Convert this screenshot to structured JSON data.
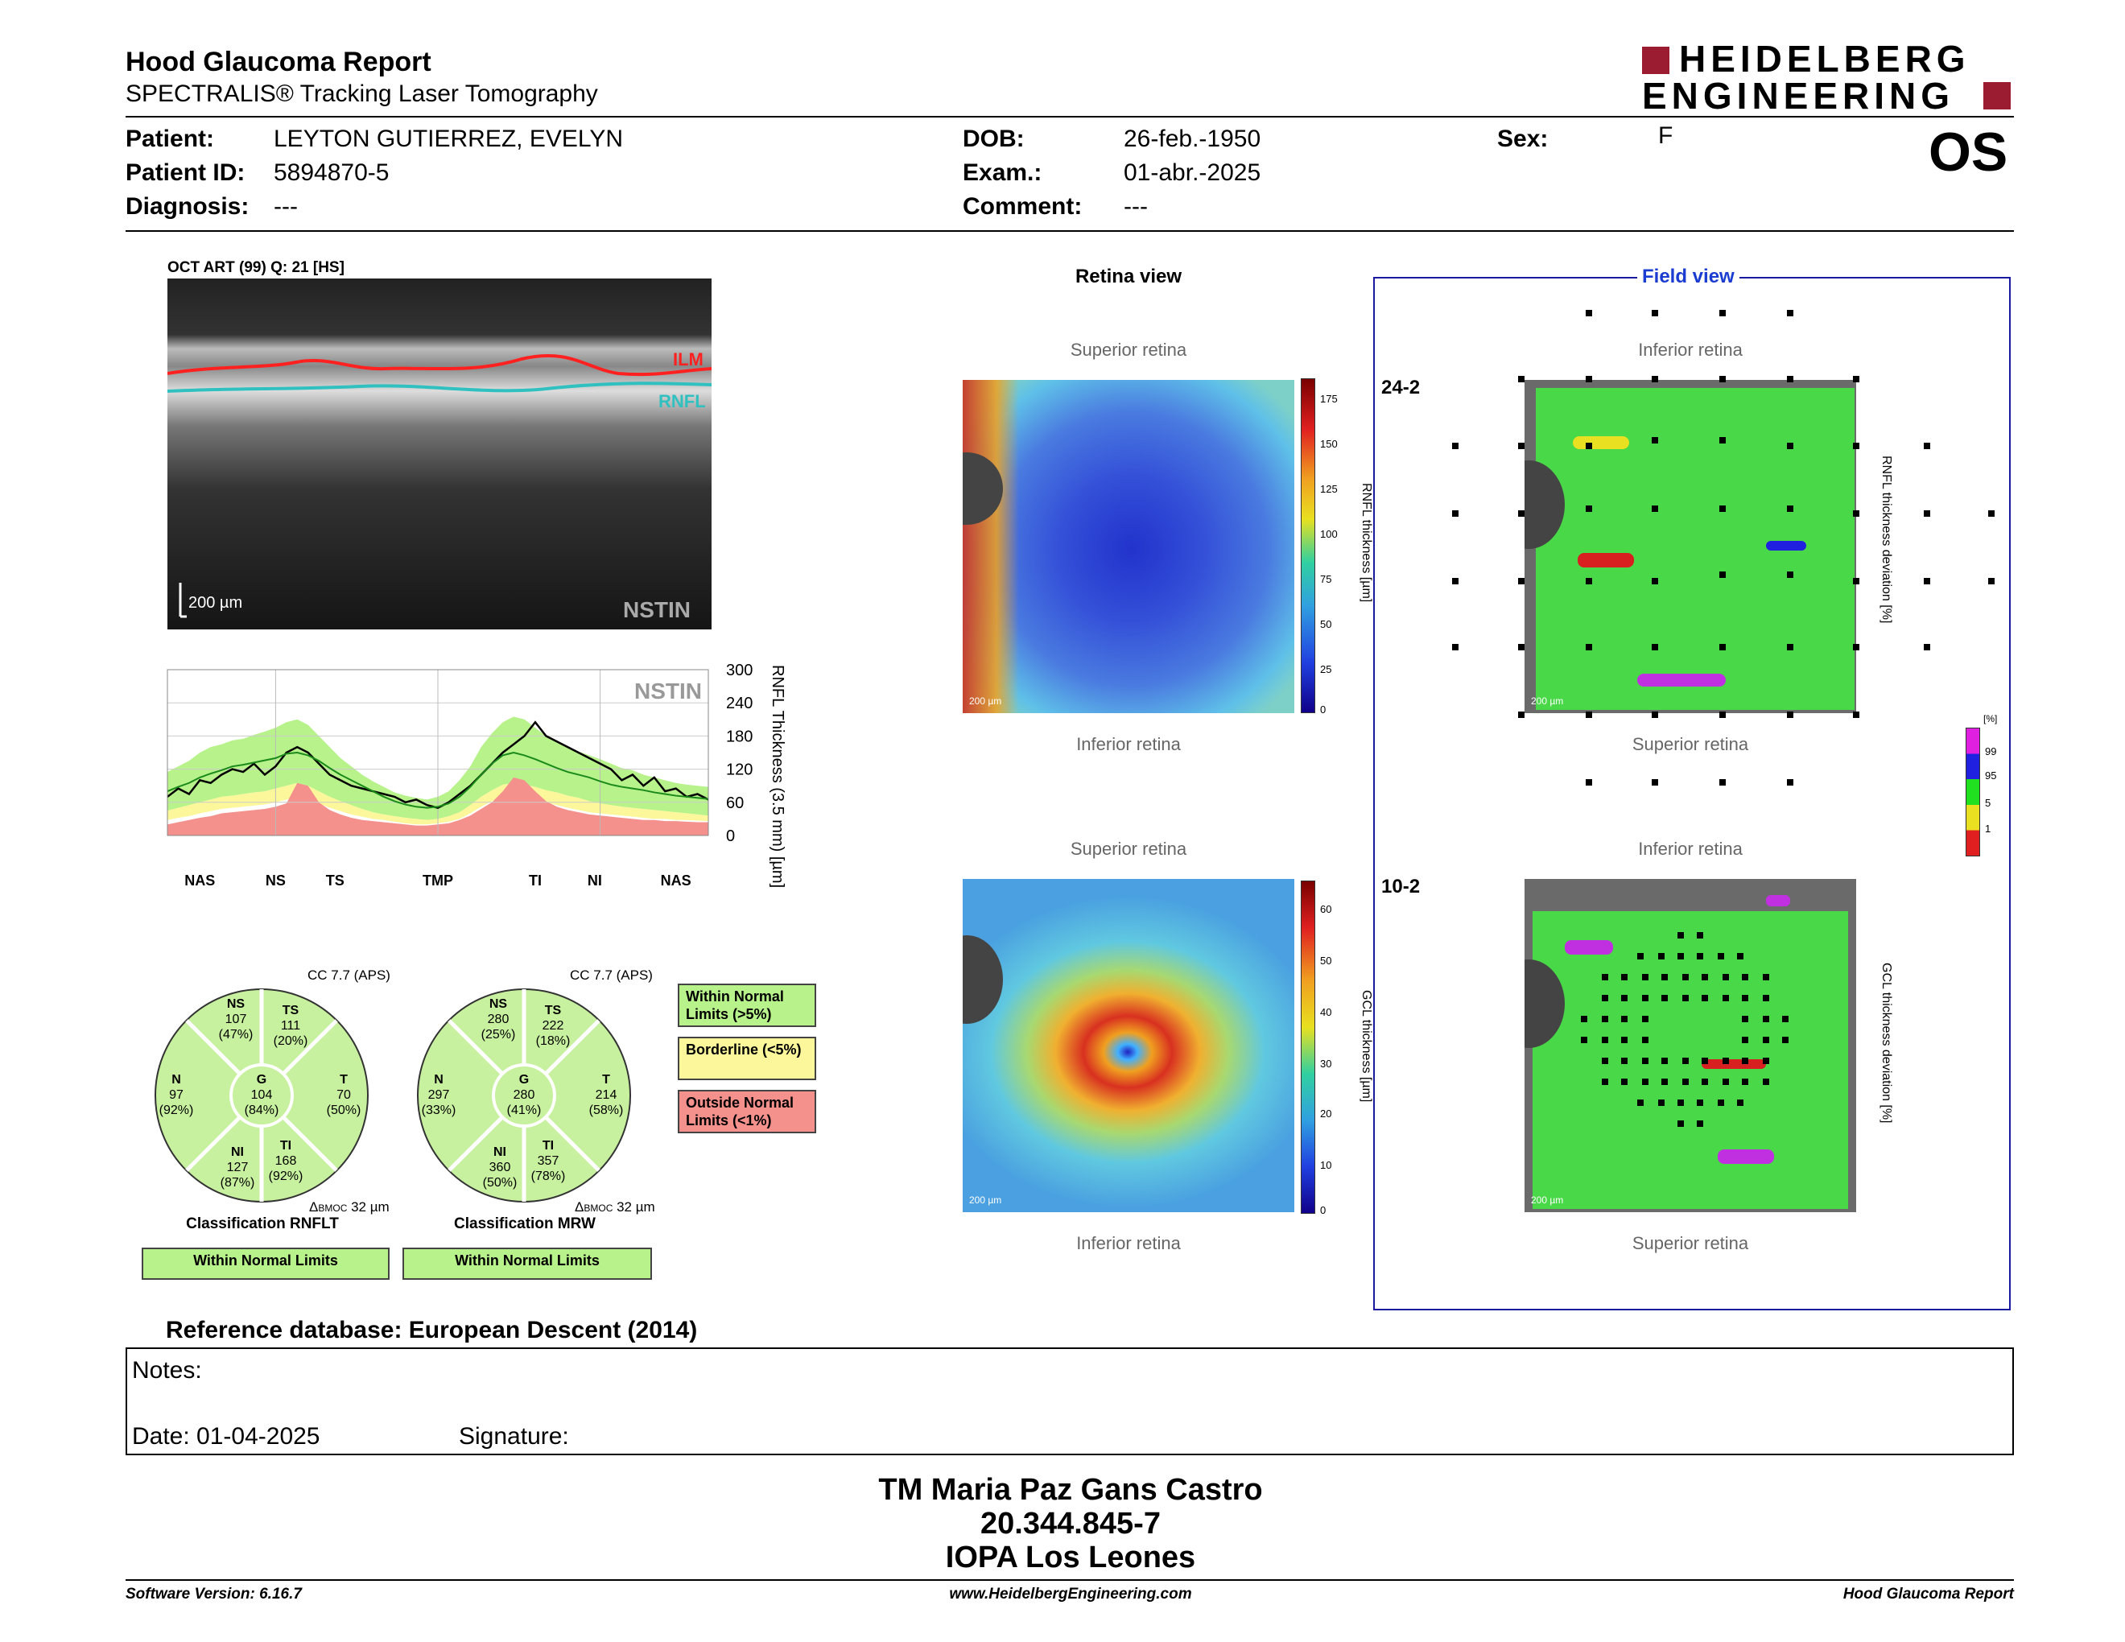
{
  "header": {
    "title": "Hood Glaucoma Report",
    "subtitle": "SPECTRALIS® Tracking Laser Tomography",
    "logo_line1": "HEIDELBERG",
    "logo_line2": "ENGINEERING",
    "eye": "OS"
  },
  "patient": {
    "patient_label": "Patient:",
    "patient_value": "LEYTON GUTIERREZ, EVELYN",
    "id_label": "Patient ID:",
    "id_value": "5894870-5",
    "diag_label": "Diagnosis:",
    "diag_value": "---",
    "dob_label": "DOB:",
    "dob_value": "26-feb.-1950",
    "exam_label": "Exam.:",
    "exam_value": "01-abr.-2025",
    "comment_label": "Comment:",
    "comment_value": "---",
    "sex_label": "Sex:",
    "sex_value": "F"
  },
  "oct": {
    "header": "OCT ART (99) Q: 21 [HS]",
    "ilm": "ILM",
    "rnfl": "RNFL",
    "scale": "200 µm",
    "nstin": "NSTIN"
  },
  "chart_data": {
    "type": "line",
    "title": "",
    "ylabel": "RNFL Thickness (3.5 mm) [µm]",
    "watermark": "NSTIN",
    "yticks": [
      0,
      60,
      120,
      180,
      240,
      300
    ],
    "ylim": [
      0,
      300
    ],
    "xlabels": [
      "NAS",
      "NS",
      "TS",
      "TMP",
      "TI",
      "NI",
      "NAS"
    ],
    "xlabel_pos": [
      0.06,
      0.2,
      0.31,
      0.5,
      0.68,
      0.79,
      0.94
    ],
    "x": [
      0,
      0.02,
      0.04,
      0.06,
      0.08,
      0.1,
      0.12,
      0.14,
      0.16,
      0.18,
      0.2,
      0.22,
      0.24,
      0.26,
      0.28,
      0.3,
      0.32,
      0.34,
      0.36,
      0.38,
      0.4,
      0.42,
      0.44,
      0.46,
      0.48,
      0.5,
      0.52,
      0.54,
      0.56,
      0.58,
      0.6,
      0.62,
      0.64,
      0.66,
      0.68,
      0.7,
      0.72,
      0.74,
      0.76,
      0.78,
      0.8,
      0.82,
      0.84,
      0.86,
      0.88,
      0.9,
      0.92,
      0.94,
      0.96,
      0.98,
      1
    ],
    "series": [
      {
        "name": "measured",
        "values": [
          70,
          85,
          75,
          100,
          95,
          110,
          120,
          115,
          130,
          110,
          125,
          150,
          160,
          150,
          130,
          110,
          100,
          90,
          85,
          80,
          75,
          70,
          60,
          65,
          55,
          50,
          60,
          75,
          90,
          110,
          130,
          150,
          165,
          180,
          205,
          180,
          170,
          160,
          150,
          140,
          130,
          120,
          100,
          110,
          90,
          105,
          80,
          85,
          70,
          75,
          65
        ]
      },
      {
        "name": "mean",
        "values": [
          80,
          88,
          95,
          105,
          112,
          118,
          125,
          128,
          132,
          136,
          140,
          148,
          150,
          145,
          135,
          122,
          110,
          100,
          90,
          80,
          70,
          62,
          56,
          52,
          50,
          52,
          58,
          70,
          88,
          110,
          130,
          145,
          150,
          145,
          138,
          130,
          122,
          115,
          110,
          105,
          98,
          92,
          88,
          85,
          82,
          78,
          75,
          72,
          70,
          68,
          66
        ]
      }
    ],
    "normal_upper": [
      115,
      125,
      135,
      150,
      160,
      165,
      172,
      175,
      182,
      188,
      195,
      205,
      210,
      200,
      180,
      160,
      140,
      125,
      110,
      98,
      88,
      78,
      72,
      68,
      65,
      70,
      80,
      100,
      125,
      160,
      185,
      205,
      215,
      210,
      195,
      180,
      170,
      160,
      152,
      145,
      138,
      130,
      122,
      118,
      110,
      105,
      100,
      95,
      92,
      90,
      88
    ],
    "normal_lower": [
      45,
      50,
      55,
      60,
      65,
      70,
      72,
      75,
      78,
      80,
      85,
      90,
      95,
      90,
      80,
      70,
      62,
      55,
      48,
      42,
      38,
      35,
      32,
      30,
      28,
      30,
      35,
      42,
      55,
      70,
      82,
      92,
      95,
      92,
      88,
      82,
      78,
      72,
      68,
      62,
      58,
      55,
      52,
      50,
      48,
      46,
      44,
      42,
      40,
      38,
      36
    ],
    "border_lower": [
      28,
      32,
      35,
      40,
      44,
      48,
      50,
      52,
      54,
      56,
      60,
      65,
      70,
      65,
      58,
      50,
      44,
      38,
      34,
      30,
      28,
      25,
      22,
      20,
      20,
      22,
      25,
      30,
      40,
      52,
      62,
      72,
      75,
      72,
      66,
      60,
      55,
      50,
      46,
      42,
      40,
      38,
      36,
      34,
      32,
      30,
      30,
      28,
      28,
      27,
      26
    ],
    "outside_lower": [
      20,
      24,
      28,
      32,
      35,
      40,
      42,
      44,
      46,
      48,
      52,
      58,
      95,
      90,
      60,
      46,
      38,
      32,
      28,
      26,
      24,
      22,
      20,
      18,
      18,
      20,
      22,
      28,
      36,
      48,
      60,
      80,
      105,
      100,
      80,
      62,
      52,
      46,
      42,
      38,
      36,
      34,
      32,
      30,
      28,
      28,
      26,
      26,
      25,
      24,
      24
    ]
  },
  "rnflt": {
    "cc": "CC 7.7 (APS)",
    "segments": {
      "NS": {
        "label": "NS",
        "value": "107",
        "pct": "(47%)"
      },
      "TS": {
        "label": "TS",
        "value": "111",
        "pct": "(20%)"
      },
      "N": {
        "label": "N",
        "value": "97",
        "pct": "(92%)"
      },
      "G": {
        "label": "G",
        "value": "104",
        "pct": "(84%)"
      },
      "T": {
        "label": "T",
        "value": "70",
        "pct": "(50%)"
      },
      "NI": {
        "label": "NI",
        "value": "127",
        "pct": "(87%)"
      },
      "TI": {
        "label": "TI",
        "value": "168",
        "pct": "(92%)"
      }
    },
    "bmoc_prefix": "Δ",
    "bmoc_label": "BMOC",
    "bmoc": "32 µm",
    "classification": "Classification RNFLT",
    "result": "Within Normal Limits"
  },
  "mrw": {
    "cc": "CC 7.7 (APS)",
    "segments": {
      "NS": {
        "label": "NS",
        "value": "280",
        "pct": "(25%)"
      },
      "TS": {
        "label": "TS",
        "value": "222",
        "pct": "(18%)"
      },
      "N": {
        "label": "N",
        "value": "297",
        "pct": "(33%)"
      },
      "G": {
        "label": "G",
        "value": "280",
        "pct": "(41%)"
      },
      "T": {
        "label": "T",
        "value": "214",
        "pct": "(58%)"
      },
      "NI": {
        "label": "NI",
        "value": "360",
        "pct": "(50%)"
      },
      "TI": {
        "label": "TI",
        "value": "357",
        "pct": "(78%)"
      }
    },
    "bmoc_prefix": "Δ",
    "bmoc_label": "BMOC",
    "bmoc": "32 µm",
    "classification": "Classification MRW",
    "result": "Within Normal Limits"
  },
  "legend": {
    "within": "Within Normal Limits (>5%)",
    "border": "Borderline (<5%)",
    "outside": "Outside Normal Limits (<1%)",
    "within_color": "#b7f28a",
    "border_color": "#fbf79a",
    "outside_color": "#f4918c"
  },
  "retina": {
    "title": "Retina view",
    "superior": "Superior retina",
    "inferior": "Inferior retina",
    "scale": "200 µm",
    "rnfl_axis": "RNFL thickness [µm]",
    "rnfl_ticks": [
      "175",
      "150",
      "125",
      "100",
      "75",
      "50",
      "25",
      "0"
    ],
    "gcl_axis": "GCL thickness [µm]",
    "gcl_ticks": [
      "60",
      "50",
      "40",
      "30",
      "20",
      "10",
      "0"
    ]
  },
  "field": {
    "title": "Field view",
    "top": "Inferior retina",
    "bottom": "Superior retina",
    "label_24": "24-2",
    "label_10": "10-2",
    "rnfl_dev": "RNFL thickness deviation [%]",
    "gcl_dev": "GCL thickness deviation [%]",
    "pct_unit": "[%]",
    "pct_ticks": [
      "99",
      "95",
      "5",
      "1"
    ],
    "scale": "200 µm"
  },
  "reference": "Reference database: European Descent (2014)",
  "notes": {
    "notes_label": "Notes:",
    "date_label": "Date: 01-04-2025",
    "signature_label": "Signature:"
  },
  "signature_block": {
    "name": "TM Maria Paz Gans Castro",
    "id": "20.344.845-7",
    "institution": "IOPA Los Leones"
  },
  "footer": {
    "software": "Software Version: 6.16.7",
    "url": "www.HeidelbergEngineering.com",
    "report": "Hood Glaucoma Report"
  }
}
